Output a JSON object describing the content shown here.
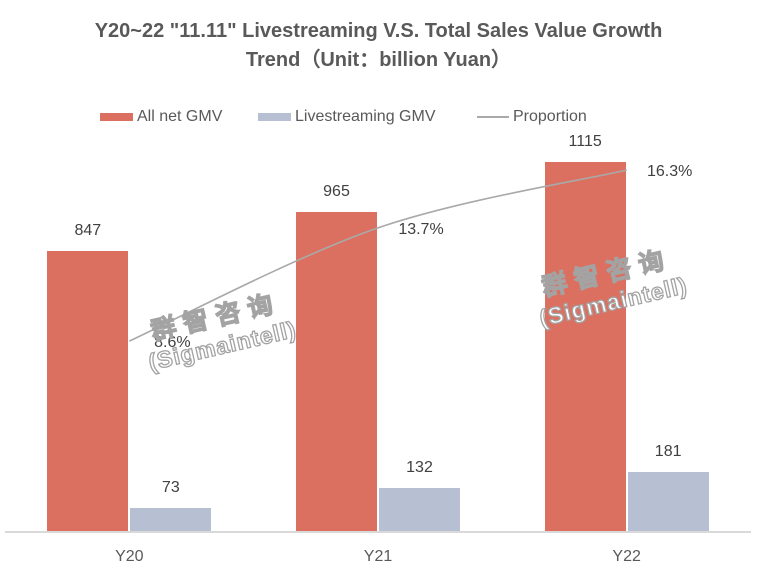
{
  "title": {
    "line1": "Y20~22 \"11.11\" Livestreaming V.S. Total Sales Value Growth",
    "line2": "Trend（Unit：billion Yuan）"
  },
  "legend": {
    "items": [
      {
        "label": "All net GMV",
        "type": "bar",
        "color": "#DB7060"
      },
      {
        "label": "Livestreaming GMV",
        "type": "bar",
        "color": "#B7C0D2"
      },
      {
        "label": "Proportion",
        "type": "line",
        "color": "#A9A9A9"
      }
    ]
  },
  "watermark": {
    "line1": "群智咨询",
    "line2": "(Sigmaintell)"
  },
  "colors": {
    "bar_all_net_gmv": "#DB7060",
    "bar_livestreaming_gmv": "#B7C0D2",
    "proportion_line": "#A9A9A9",
    "axis_line": "#D9D9D9",
    "title_text": "#595959",
    "label_text": "#404040",
    "background": "#FFFFFF"
  },
  "chart_data": {
    "type": "bar",
    "subtype": "grouped-bars-with-line",
    "title": "Y20~22 \"11.11\" Livestreaming V.S. Total Sales Value Growth Trend（Unit：billion Yuan）",
    "categories": [
      "Y20",
      "Y21",
      "Y22"
    ],
    "series": [
      {
        "name": "All net GMV",
        "type": "bar",
        "color": "#DB7060",
        "values": [
          847,
          965,
          1115
        ],
        "labels": [
          "847",
          "965",
          "1115"
        ]
      },
      {
        "name": "Livestreaming GMV",
        "type": "bar",
        "color": "#B7C0D2",
        "values": [
          73,
          132,
          181
        ],
        "labels": [
          "73",
          "132",
          "181"
        ]
      },
      {
        "name": "Proportion",
        "type": "line",
        "color": "#A9A9A9",
        "values": [
          8.6,
          13.7,
          16.3
        ],
        "labels": [
          "8.6%",
          "13.7%",
          "16.3%"
        ],
        "axis": "secondary",
        "unit": "%"
      }
    ],
    "xlabel": "",
    "ylabel": "",
    "value_axis_visible": false,
    "secondary_axis_visible": false,
    "grid": false,
    "legend_position": "top",
    "data_labels": true
  }
}
